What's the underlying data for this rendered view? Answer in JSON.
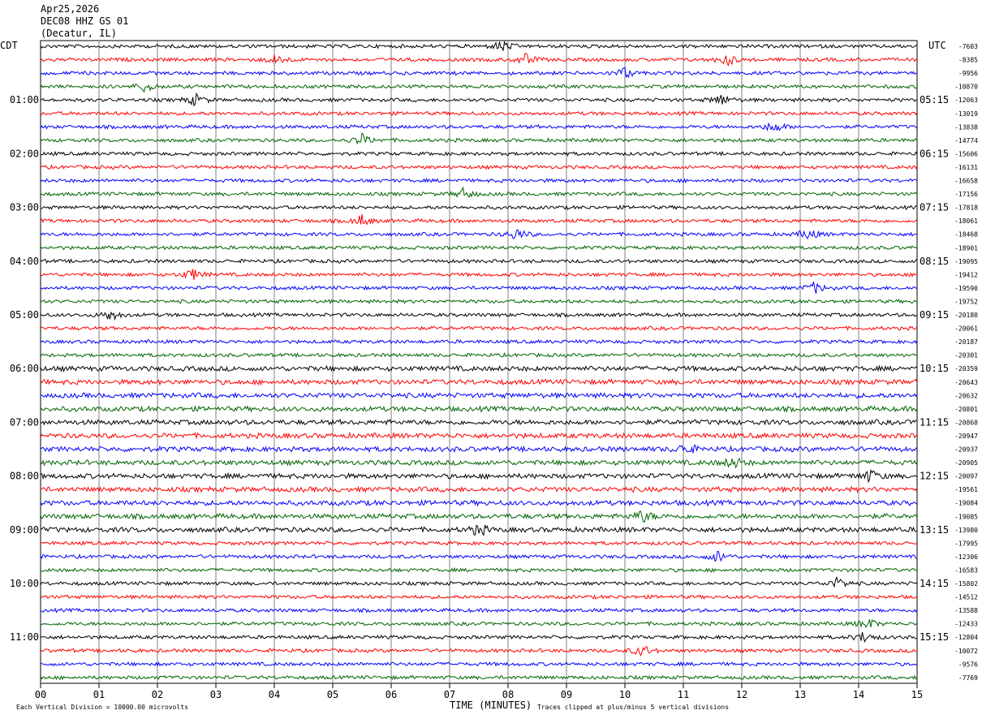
{
  "header": {
    "date": "Apr25,2026",
    "station": "DEC08 HHZ GS 01",
    "location": "(Decatur, IL)"
  },
  "left_zone": "CDT",
  "right_zone": "UTC",
  "footer": {
    "scale_note": "Each Vertical Division = 10000.00 microvolts",
    "xlabel": "TIME (MINUTES)",
    "clip_note": "Traces clipped at plus/minus 5 vertical divisions"
  },
  "colors": {
    "trace_cycle": [
      "#000000",
      "#ff0000",
      "#0000ff",
      "#006400"
    ],
    "grid": "#808080"
  },
  "chart_data": {
    "type": "line",
    "xlim": [
      0,
      15
    ],
    "x_ticks": [
      "00",
      "01",
      "02",
      "03",
      "04",
      "05",
      "06",
      "07",
      "08",
      "09",
      "10",
      "11",
      "12",
      "13",
      "14",
      "15"
    ],
    "trace_count": 48,
    "left_labels": [
      "01:00",
      "02:00",
      "03:00",
      "04:00",
      "05:00",
      "06:00",
      "07:00",
      "08:00",
      "09:00",
      "10:00",
      "11:00"
    ],
    "right_labels": [
      "05:15",
      "06:15",
      "07:15",
      "08:15",
      "09:15",
      "10:15",
      "11:15",
      "12:15",
      "13:15",
      "14:15",
      "15:15"
    ],
    "trace_offsets": [
      "-7603",
      "-8385",
      "-9956",
      "-10870",
      "-12063",
      "-13019",
      "-13838",
      "-14774",
      "-15606",
      "-16131",
      "-16658",
      "-17156",
      "-17818",
      "-18061",
      "-18468",
      "-18901",
      "-19095",
      "-19412",
      "-19590",
      "-19752",
      "-20180",
      "-20061",
      "-20187",
      "-20301",
      "-20359",
      "-20643",
      "-20632",
      "-20801",
      "-20868",
      "-20947",
      "-20937",
      "-20905",
      "-20097",
      "-19561",
      "-19084",
      "-19085",
      "-13980",
      "-17995",
      "-12306",
      "-16583",
      "-15802",
      "-14512",
      "-13588",
      "-12433",
      "-12804",
      "-10072",
      "-9576",
      "-7769"
    ],
    "events": [
      {
        "trace": 0,
        "minute": 7.9
      },
      {
        "trace": 1,
        "minute": 4.05
      },
      {
        "trace": 1,
        "minute": 8.3
      },
      {
        "trace": 1,
        "minute": 11.75
      },
      {
        "trace": 2,
        "minute": 10.0
      },
      {
        "trace": 3,
        "minute": 1.8
      },
      {
        "trace": 4,
        "minute": 2.65
      },
      {
        "trace": 4,
        "minute": 11.65
      },
      {
        "trace": 6,
        "minute": 12.55
      },
      {
        "trace": 7,
        "minute": 5.5
      },
      {
        "trace": 11,
        "minute": 7.25
      },
      {
        "trace": 13,
        "minute": 5.5
      },
      {
        "trace": 14,
        "minute": 8.15
      },
      {
        "trace": 14,
        "minute": 13.15
      },
      {
        "trace": 17,
        "minute": 2.6
      },
      {
        "trace": 18,
        "minute": 13.25
      },
      {
        "trace": 20,
        "minute": 1.2
      },
      {
        "trace": 30,
        "minute": 11.05
      },
      {
        "trace": 31,
        "minute": 11.85
      },
      {
        "trace": 32,
        "minute": 14.2
      },
      {
        "trace": 35,
        "minute": 10.3
      },
      {
        "trace": 36,
        "minute": 7.5
      },
      {
        "trace": 38,
        "minute": 11.6
      },
      {
        "trace": 40,
        "minute": 13.65
      },
      {
        "trace": 43,
        "minute": 14.15
      },
      {
        "trace": 44,
        "minute": 14.1
      },
      {
        "trace": 45,
        "minute": 10.3
      }
    ]
  }
}
